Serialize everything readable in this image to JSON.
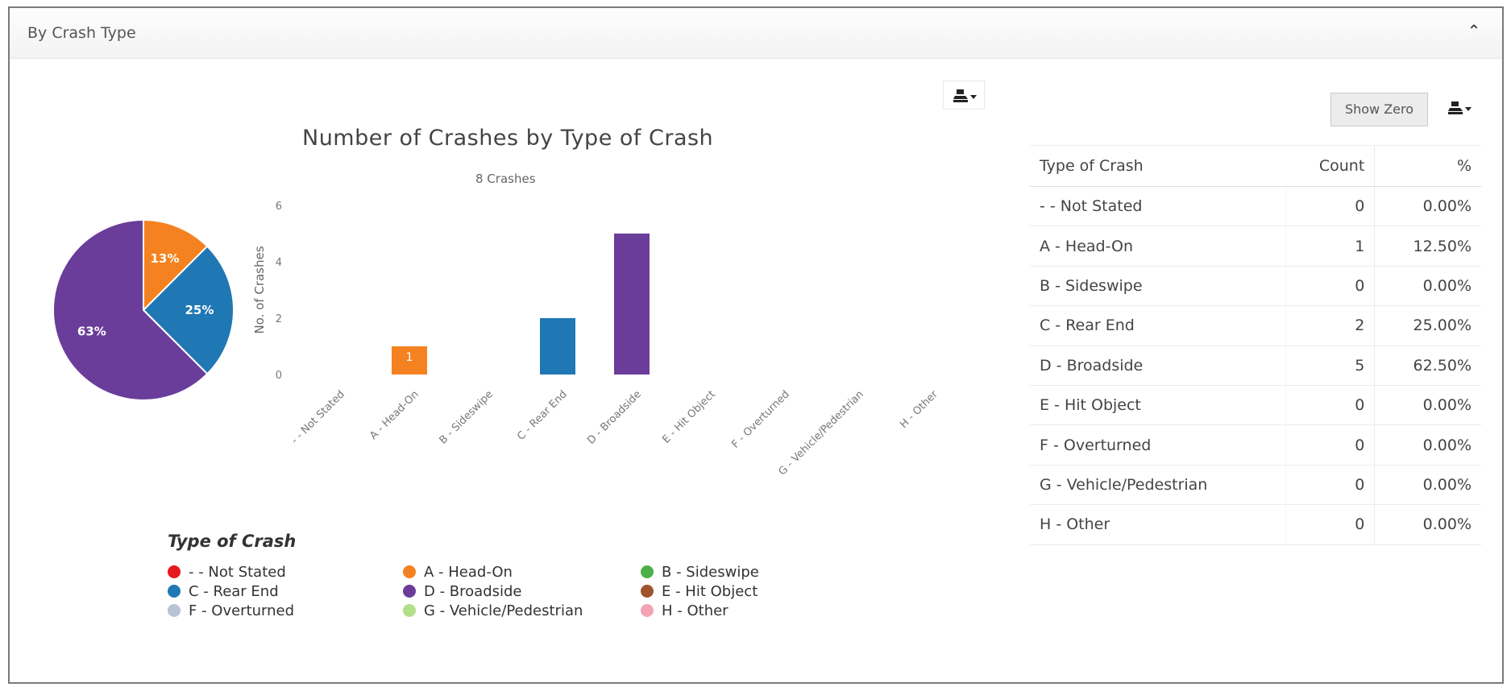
{
  "panel": {
    "title": "By Crash Type",
    "collapse_icon": "chevron-up-icon"
  },
  "toolbar": {
    "show_zero_label": "Show Zero",
    "download_icon": "download-menu-icon"
  },
  "colors": {
    "not_stated": "#e41a1c",
    "head_on": "#f58220",
    "sideswipe": "#4daf4a",
    "rear_end": "#1f78b4",
    "broadside": "#6a3d9a",
    "hit_object": "#a0522d",
    "overturned": "#b8c4d6",
    "vehicle_pedestrian": "#b2df8a",
    "other": "#f4a3b4"
  },
  "chart_data": [
    {
      "type": "pie",
      "labels": [
        "A - Head-On",
        "C - Rear End",
        "D - Broadside"
      ],
      "values": [
        12.5,
        25,
        62.5
      ],
      "data_labels": [
        "13%",
        "25%",
        "63%"
      ],
      "colors": [
        "#f58220",
        "#1f78b4",
        "#6a3d9a"
      ]
    },
    {
      "type": "bar",
      "title": "Number of Crashes by Type of Crash",
      "subtitle": "8 Crashes",
      "ylabel": "No. of Crashes",
      "ylim": [
        0,
        6
      ],
      "yticks": [
        "0",
        "2",
        "4",
        "6"
      ],
      "categories": [
        "- - Not Stated",
        "A - Head-On",
        "B - Sideswipe",
        "C - Rear End",
        "D - Broadside",
        "E - Hit Object",
        "F - Overturned",
        "G - Vehicle/Pedestrian",
        "H - Other"
      ],
      "values": [
        0,
        1,
        0,
        2,
        5,
        0,
        0,
        0,
        0
      ],
      "data_labels": [
        "",
        "1",
        "",
        "",
        "",
        "",
        "",
        "",
        ""
      ],
      "colors": [
        "#e41a1c",
        "#f58220",
        "#4daf4a",
        "#1f78b4",
        "#6a3d9a",
        "#a0522d",
        "#b8c4d6",
        "#b2df8a",
        "#f4a3b4"
      ]
    }
  ],
  "legend": {
    "title": "Type of Crash",
    "items": [
      {
        "label": "- - Not Stated",
        "color": "#e41a1c"
      },
      {
        "label": "A - Head-On",
        "color": "#f58220"
      },
      {
        "label": "B - Sideswipe",
        "color": "#4daf4a"
      },
      {
        "label": "C - Rear End",
        "color": "#1f78b4"
      },
      {
        "label": "D - Broadside",
        "color": "#6a3d9a"
      },
      {
        "label": "E - Hit Object",
        "color": "#a0522d"
      },
      {
        "label": "F - Overturned",
        "color": "#b8c4d6"
      },
      {
        "label": "G - Vehicle/Pedestrian",
        "color": "#b2df8a"
      },
      {
        "label": "H - Other",
        "color": "#f4a3b4"
      }
    ]
  },
  "table": {
    "headers": [
      "Type of Crash",
      "Count",
      "%"
    ],
    "rows": [
      [
        "- - Not Stated",
        "0",
        "0.00%"
      ],
      [
        "A - Head-On",
        "1",
        "12.50%"
      ],
      [
        "B - Sideswipe",
        "0",
        "0.00%"
      ],
      [
        "C - Rear End",
        "2",
        "25.00%"
      ],
      [
        "D - Broadside",
        "5",
        "62.50%"
      ],
      [
        "E - Hit Object",
        "0",
        "0.00%"
      ],
      [
        "F - Overturned",
        "0",
        "0.00%"
      ],
      [
        "G - Vehicle/Pedestrian",
        "0",
        "0.00%"
      ],
      [
        "H - Other",
        "0",
        "0.00%"
      ]
    ]
  }
}
